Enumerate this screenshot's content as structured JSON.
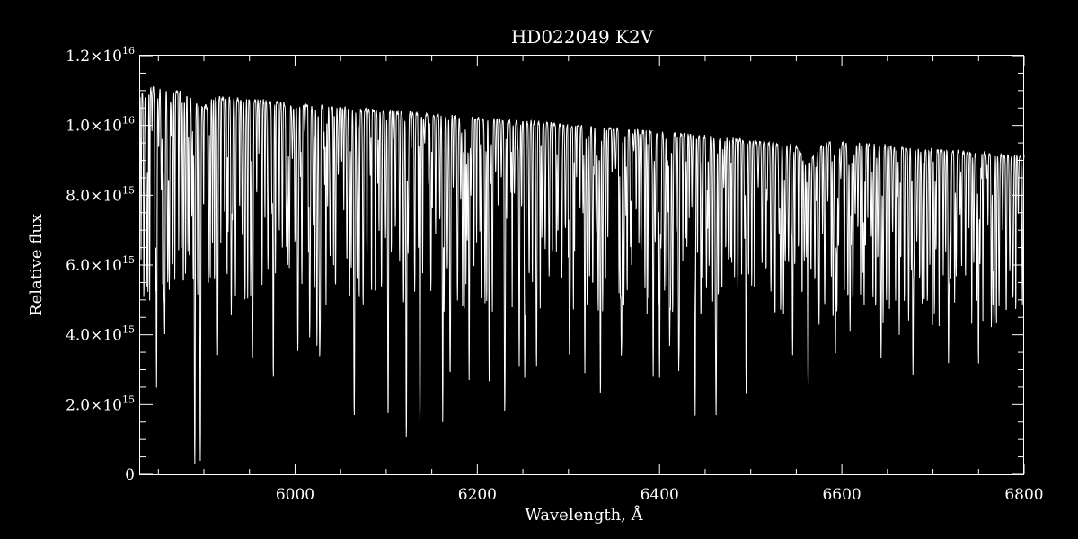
{
  "chart_data": {
    "type": "line",
    "title": "HD022049   K2V",
    "xlabel": "Wavelength, Å",
    "ylabel": "Relative flux",
    "xlim": [
      5830,
      6800
    ],
    "ylim": [
      0,
      1.2e+16
    ],
    "grid": false,
    "legend": "none",
    "colors": {
      "background": "#000000",
      "foreground": "#ffffff",
      "line": "#ffffff"
    },
    "x_ticks": [
      {
        "value": 6000,
        "label": "6000"
      },
      {
        "value": 6200,
        "label": "6200"
      },
      {
        "value": 6400,
        "label": "6400"
      },
      {
        "value": 6600,
        "label": "6600"
      },
      {
        "value": 6800,
        "label": "6800"
      }
    ],
    "y_ticks": [
      {
        "value": 0,
        "mantissa": "0",
        "exponent": ""
      },
      {
        "value": 2000000000000000.0,
        "mantissa": "2.0×10",
        "exponent": "15"
      },
      {
        "value": 4000000000000000.0,
        "mantissa": "4.0×10",
        "exponent": "15"
      },
      {
        "value": 6000000000000000.0,
        "mantissa": "6.0×10",
        "exponent": "15"
      },
      {
        "value": 8000000000000000.0,
        "mantissa": "8.0×10",
        "exponent": "15"
      },
      {
        "value": 1e+16,
        "mantissa": "1.0×10",
        "exponent": "16"
      },
      {
        "value": 1.2e+16,
        "mantissa": "1.2×10",
        "exponent": "16"
      }
    ],
    "series": [
      {
        "continuum": [
          [
            5830,
            1.09e+16
          ],
          [
            5850,
            1.11e+16
          ],
          [
            5880,
            1.09e+16
          ],
          [
            5900,
            1.05e+16
          ],
          [
            5910,
            1.08e+16
          ],
          [
            6000,
            1.06e+16
          ],
          [
            6100,
            1.04e+16
          ],
          [
            6200,
            1.02e+16
          ],
          [
            6300,
            1e+16
          ],
          [
            6400,
            9800000000000000.0
          ],
          [
            6500,
            9550000000000000.0
          ],
          [
            6550,
            9400000000000000.0
          ],
          [
            6563,
            8900000000000000.0
          ],
          [
            6580,
            9500000000000000.0
          ],
          [
            6600,
            9500000000000000.0
          ],
          [
            6700,
            9300000000000000.0
          ],
          [
            6800,
            9100000000000000.0
          ]
        ],
        "absorption_lines": [
          [
            5848,
            2500000000000000.0
          ],
          [
            5857,
            4300000000000000.0
          ],
          [
            5862,
            5300000000000000.0
          ],
          [
            5890,
            550000000000000.0
          ],
          [
            5896,
            600000000000000.0
          ],
          [
            5905,
            5500000000000000.0
          ],
          [
            5915,
            4000000000000000.0
          ],
          [
            5930,
            4600000000000000.0
          ],
          [
            5953,
            4500000000000000.0
          ],
          [
            5976,
            5000000000000000.0
          ],
          [
            6003,
            3900000000000000.0
          ],
          [
            6016,
            4200000000000000.0
          ],
          [
            6024,
            3700000000000000.0
          ],
          [
            6027,
            3700000000000000.0
          ],
          [
            6065,
            2900000000000000.0
          ],
          [
            6102,
            2100000000000000.0
          ],
          [
            6122,
            1600000000000000.0
          ],
          [
            6137,
            2700000000000000.0
          ],
          [
            6162,
            1500000000000000.0
          ],
          [
            6170,
            3800000000000000.0
          ],
          [
            6191,
            2700000000000000.0
          ],
          [
            6213,
            3800000000000000.0
          ],
          [
            6230,
            2300000000000000.0
          ],
          [
            6246,
            3100000000000000.0
          ],
          [
            6252,
            2800000000000000.0
          ],
          [
            6265,
            3300000000000000.0
          ],
          [
            6301,
            3500000000000000.0
          ],
          [
            6318,
            2900000000000000.0
          ],
          [
            6335,
            3800000000000000.0
          ],
          [
            6358,
            3600000000000000.0
          ],
          [
            6393,
            2800000000000000.0
          ],
          [
            6400,
            2800000000000000.0
          ],
          [
            6411,
            3800000000000000.0
          ],
          [
            6421,
            3000000000000000.0
          ],
          [
            6439,
            1700000000000000.0
          ],
          [
            6462,
            1900000000000000.0
          ],
          [
            6495,
            2300000000000000.0
          ],
          [
            6546,
            3400000000000000.0
          ],
          [
            6563,
            2800000000000000.0
          ],
          [
            6575,
            4600000000000000.0
          ],
          [
            6593,
            3500000000000000.0
          ],
          [
            6609,
            4100000000000000.0
          ],
          [
            6643,
            3600000000000000.0
          ],
          [
            6663,
            4000000000000000.0
          ],
          [
            6678,
            2900000000000000.0
          ],
          [
            6717,
            3200000000000000.0
          ],
          [
            6750,
            3900000000000000.0
          ],
          [
            6767,
            4200000000000000.0
          ]
        ]
      }
    ]
  }
}
